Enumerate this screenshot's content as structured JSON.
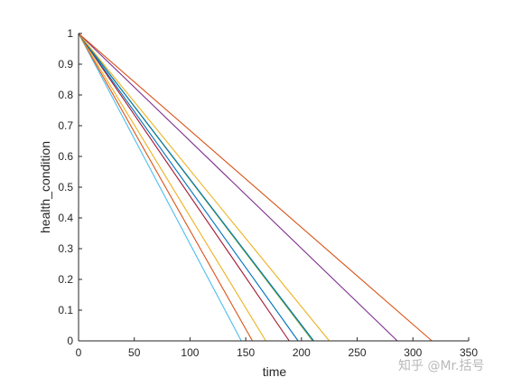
{
  "chart_data": {
    "type": "line",
    "xlabel": "time",
    "ylabel": "health_condition",
    "xlim": [
      0,
      350
    ],
    "ylim": [
      0,
      1
    ],
    "xticks": [
      0,
      50,
      100,
      150,
      200,
      250,
      300,
      350
    ],
    "yticks": [
      0,
      0.1,
      0.2,
      0.3,
      0.4,
      0.5,
      0.6,
      0.7,
      0.8,
      0.9,
      1
    ],
    "xtick_labels": [
      "0",
      "50",
      "100",
      "150",
      "200",
      "250",
      "300",
      "350"
    ],
    "ytick_labels": [
      "0",
      "0.1",
      "0.2",
      "0.3",
      "0.4",
      "0.5",
      "0.6",
      "0.7",
      "0.8",
      "0.9",
      "1"
    ],
    "grid": false,
    "legend": false,
    "series": [
      {
        "color": "#4DBEEE",
        "x": [
          0,
          146
        ],
        "y": [
          1,
          0
        ]
      },
      {
        "color": "#D95319",
        "x": [
          0,
          156
        ],
        "y": [
          1,
          0
        ]
      },
      {
        "color": "#EDB120",
        "x": [
          0,
          168
        ],
        "y": [
          1,
          0
        ]
      },
      {
        "color": "#A2142F",
        "x": [
          0,
          189
        ],
        "y": [
          1,
          0
        ]
      },
      {
        "color": "#0072BD",
        "x": [
          0,
          197
        ],
        "y": [
          1,
          0
        ]
      },
      {
        "color": "#77AC30",
        "x": [
          0,
          210
        ],
        "y": [
          1,
          0
        ]
      },
      {
        "color": "#0072BD",
        "x": [
          0,
          211
        ],
        "y": [
          1,
          0
        ]
      },
      {
        "color": "#EDB120",
        "x": [
          0,
          225
        ],
        "y": [
          1,
          0
        ]
      },
      {
        "color": "#7E2F8E",
        "x": [
          0,
          286
        ],
        "y": [
          1,
          0
        ]
      },
      {
        "color": "#D95319",
        "x": [
          0,
          317
        ],
        "y": [
          1,
          0
        ]
      }
    ]
  },
  "watermark": "知乎 @Mr.括号"
}
